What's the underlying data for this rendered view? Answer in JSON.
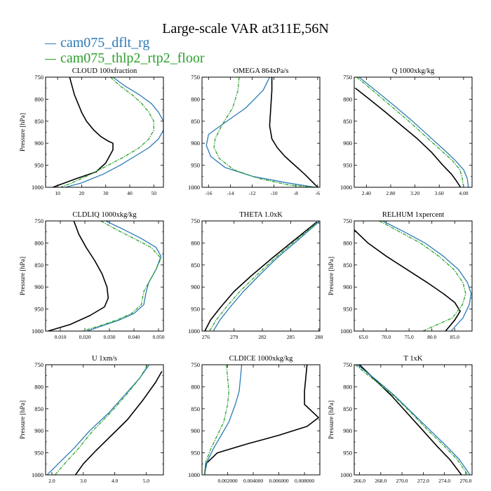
{
  "figure": {
    "title": "Large-scale VAR at311E,56N",
    "legend": [
      {
        "label": "cam075_dflt_rg",
        "color": "#2c7bb6"
      },
      {
        "label": "cam075_thlp2_rtp2_floor",
        "color": "#2ca02c"
      }
    ],
    "ref_color": "#000000"
  },
  "chart_data": [
    {
      "type": "line",
      "title": "CLOUD 100xfraction",
      "ylabel": "Pressure [hPa]",
      "xlim": [
        5,
        54
      ],
      "ylim": [
        1000,
        750
      ],
      "xticks": [
        10,
        20,
        30,
        40,
        50
      ],
      "xticklabels": [
        "10",
        "20",
        "30",
        "40",
        "50"
      ],
      "yticks": [
        750,
        800,
        850,
        900,
        950,
        1000
      ],
      "series": [
        {
          "style": "ref",
          "x": [
            15,
            16,
            17,
            18.5,
            20,
            22,
            25,
            28,
            31,
            33,
            33,
            30,
            26,
            18,
            8
          ],
          "y": [
            750,
            770,
            790,
            810,
            830,
            850,
            870,
            885,
            895,
            900,
            915,
            945,
            965,
            980,
            1000
          ]
        },
        {
          "series": 0,
          "x": [
            33,
            38,
            44,
            49,
            52,
            54,
            54,
            52,
            48,
            42,
            36,
            29,
            20,
            10
          ],
          "y": [
            750,
            770,
            790,
            810,
            830,
            850,
            870,
            890,
            910,
            930,
            950,
            970,
            990,
            1005
          ]
        },
        {
          "series": 1,
          "x": [
            32,
            36,
            41,
            45,
            48,
            50,
            50,
            48,
            44,
            38,
            31,
            24,
            16,
            9
          ],
          "y": [
            750,
            770,
            790,
            810,
            830,
            850,
            870,
            890,
            910,
            930,
            950,
            970,
            990,
            1005
          ]
        }
      ]
    },
    {
      "type": "line",
      "title": "OMEGA  864xPa/s",
      "ylabel": "",
      "xlim": [
        -16.6,
        -5.8
      ],
      "ylim": [
        1000,
        750
      ],
      "xticks": [
        -16,
        -14,
        -12,
        -10,
        -8,
        -6
      ],
      "xticklabels": [
        "-16",
        "-14",
        "-12",
        "-10",
        "-8",
        "-6"
      ],
      "yticks": [
        750,
        800,
        850,
        900,
        950,
        1000
      ],
      "series": [
        {
          "style": "ref",
          "x": [
            -10.2,
            -10.2,
            -10.3,
            -10.4,
            -10.2,
            -9.7,
            -9.0,
            -8.1,
            -7.2,
            -6.4,
            -6.0
          ],
          "y": [
            750,
            780,
            820,
            860,
            890,
            910,
            930,
            950,
            970,
            990,
            1000
          ]
        },
        {
          "series": 0,
          "x": [
            -10.4,
            -11.0,
            -12.6,
            -14.6,
            -16.0,
            -16.2,
            -15.8,
            -14.5,
            -12.0,
            -8.8,
            -6.2
          ],
          "y": [
            750,
            780,
            820,
            855,
            880,
            905,
            930,
            955,
            975,
            990,
            1000
          ]
        },
        {
          "series": 1,
          "x": [
            -13.2,
            -13.3,
            -13.8,
            -14.8,
            -15.4,
            -15.5,
            -15.0,
            -13.7,
            -11.4,
            -8.6,
            -6.2
          ],
          "y": [
            750,
            780,
            820,
            860,
            890,
            910,
            935,
            960,
            980,
            995,
            1000
          ]
        }
      ]
    },
    {
      "type": "line",
      "title": "Q  1000xkg/kg",
      "ylabel": "",
      "xlim": [
        2.2,
        4.14
      ],
      "ylim": [
        1000,
        750
      ],
      "xticks": [
        2.4,
        2.8,
        3.2,
        3.6,
        4.0
      ],
      "xticklabels": [
        "2.40",
        "2.80",
        "3.20",
        "3.60",
        "4.00"
      ],
      "yticks": [
        750,
        800,
        850,
        900,
        950,
        1000
      ],
      "series": [
        {
          "style": "ref",
          "x": [
            2.22,
            2.45,
            2.72,
            2.98,
            3.24,
            3.47,
            3.66,
            3.8,
            3.88,
            3.95
          ],
          "y": [
            775,
            800,
            830,
            860,
            890,
            920,
            950,
            970,
            985,
            1000
          ]
        },
        {
          "series": 0,
          "x": [
            2.28,
            2.55,
            2.86,
            3.16,
            3.44,
            3.68,
            3.87,
            4.0,
            4.06,
            4.08
          ],
          "y": [
            750,
            780,
            815,
            850,
            885,
            915,
            940,
            960,
            980,
            1000
          ]
        },
        {
          "series": 1,
          "x": [
            2.24,
            2.5,
            2.8,
            3.1,
            3.38,
            3.62,
            3.82,
            3.94,
            3.98,
            4.0
          ],
          "y": [
            750,
            780,
            815,
            850,
            885,
            915,
            940,
            960,
            980,
            1000
          ]
        }
      ]
    },
    {
      "type": "line",
      "title": "CLDLIQ  1000xkg/kg",
      "ylabel": "Pressure [hPa]",
      "xlim": [
        0.004,
        0.052
      ],
      "ylim": [
        1000,
        750
      ],
      "xticks": [
        0.01,
        0.02,
        0.03,
        0.04,
        0.05
      ],
      "xticklabels": [
        "0.010",
        "0.020",
        "0.030",
        "0.040",
        "0.050"
      ],
      "yticks": [
        750,
        800,
        850,
        900,
        950,
        1000
      ],
      "series": [
        {
          "style": "ref",
          "x": [
            0.0155,
            0.0175,
            0.0205,
            0.024,
            0.027,
            0.029,
            0.0295,
            0.028,
            0.022,
            0.014,
            0.005
          ],
          "y": [
            750,
            780,
            810,
            840,
            870,
            900,
            925,
            945,
            965,
            985,
            1000
          ]
        },
        {
          "series": 0,
          "x": [
            0.0285,
            0.036,
            0.043,
            0.049,
            0.051,
            0.049,
            0.046,
            0.045,
            0.044,
            0.04,
            0.034,
            0.026,
            0.021
          ],
          "y": [
            750,
            770,
            790,
            810,
            830,
            860,
            890,
            910,
            940,
            960,
            975,
            990,
            1000
          ]
        },
        {
          "series": 1,
          "x": [
            0.0265,
            0.033,
            0.04,
            0.047,
            0.051,
            0.049,
            0.046,
            0.044,
            0.043,
            0.039,
            0.033,
            0.025,
            0.019
          ],
          "y": [
            750,
            770,
            790,
            810,
            835,
            860,
            890,
            910,
            940,
            960,
            975,
            990,
            1000
          ]
        }
      ]
    },
    {
      "type": "line",
      "title": "THETA  1.0xK",
      "ylabel": "",
      "xlim": [
        275.6,
        288.1
      ],
      "ylim": [
        1000,
        750
      ],
      "xticks": [
        276,
        279,
        282,
        285,
        288
      ],
      "xticklabels": [
        "276",
        "279",
        "282",
        "285",
        "288"
      ],
      "yticks": [
        750,
        800,
        850,
        900,
        950,
        1000
      ],
      "series": [
        {
          "style": "ref",
          "x": [
            275.9,
            276.5,
            277.6,
            279.0,
            280.8,
            283.0,
            285.3,
            287.8
          ],
          "y": [
            1000,
            975,
            945,
            910,
            875,
            835,
            795,
            752
          ]
        },
        {
          "series": 0,
          "x": [
            276.8,
            277.5,
            278.6,
            280.0,
            281.6,
            283.5,
            285.7,
            288.0
          ],
          "y": [
            1000,
            975,
            945,
            910,
            875,
            835,
            795,
            752
          ]
        },
        {
          "series": 1,
          "x": [
            276.4,
            277.1,
            278.2,
            279.6,
            281.3,
            283.3,
            285.5,
            287.9
          ],
          "y": [
            1000,
            975,
            945,
            910,
            875,
            835,
            795,
            752
          ]
        }
      ]
    },
    {
      "type": "line",
      "title": "RELHUM  1xpercent",
      "ylabel": "Pressure [hPa]",
      "xlim": [
        63,
        88.8
      ],
      "ylim": [
        1000,
        750
      ],
      "xticks": [
        65,
        70,
        75,
        80,
        85
      ],
      "xticklabels": [
        "65.0",
        "70.0",
        "75.0",
        "80.0",
        "85.0"
      ],
      "yticks": [
        750,
        800,
        850,
        900,
        950,
        1000
      ],
      "series": [
        {
          "style": "ref",
          "x": [
            63,
            66,
            70,
            74.5,
            79,
            82.5,
            85,
            86.2,
            85,
            83
          ],
          "y": [
            770,
            800,
            830,
            860,
            890,
            915,
            935,
            955,
            975,
            1000
          ]
        },
        {
          "series": 0,
          "x": [
            69.2,
            74,
            78.5,
            82.5,
            85.8,
            87.8,
            88.6,
            88.2,
            86.8,
            84.2
          ],
          "y": [
            750,
            775,
            800,
            830,
            860,
            890,
            915,
            940,
            970,
            1000
          ]
        },
        {
          "series": 1,
          "x": [
            68.5,
            73,
            77.5,
            81.5,
            84.8,
            86.8,
            87.4,
            86.7,
            84.5,
            78
          ],
          "y": [
            750,
            775,
            800,
            830,
            860,
            890,
            915,
            940,
            970,
            1000
          ]
        }
      ]
    },
    {
      "type": "line",
      "title": "U  1xm/s",
      "ylabel": "Pressure [hPa]",
      "xlim": [
        1.8,
        5.55
      ],
      "ylim": [
        1000,
        750
      ],
      "xticks": [
        2.0,
        3.0,
        4.0,
        5.0
      ],
      "xticklabels": [
        "2.0",
        "3.0",
        "4.0",
        "5.0"
      ],
      "yticks": [
        750,
        800,
        850,
        900,
        950,
        1000
      ],
      "series": [
        {
          "style": "ref",
          "x": [
            2.75,
            3.0,
            3.4,
            3.9,
            4.4,
            4.9,
            5.3,
            5.5
          ],
          "y": [
            1000,
            975,
            945,
            910,
            875,
            830,
            790,
            765
          ]
        },
        {
          "series": 0,
          "x": [
            1.85,
            2.2,
            2.7,
            3.2,
            3.8,
            4.3,
            4.8,
            5.1
          ],
          "y": [
            1000,
            975,
            940,
            900,
            860,
            820,
            780,
            750
          ]
        },
        {
          "series": 1,
          "x": [
            2.1,
            2.4,
            2.85,
            3.3,
            3.85,
            4.35,
            4.8,
            5.05
          ],
          "y": [
            1000,
            975,
            940,
            900,
            860,
            820,
            780,
            750
          ]
        }
      ]
    },
    {
      "type": "line",
      "title": "CLDICE  1000xkg/kg",
      "ylabel": "",
      "xlim": [
        0,
        0.0092
      ],
      "ylim": [
        1000,
        750
      ],
      "xticks": [
        0.002,
        0.004,
        0.006,
        0.008
      ],
      "xticklabels": [
        "0.002000",
        "0.004000",
        "0.006000",
        "0.008000"
      ],
      "yticks": [
        750,
        800,
        850,
        900,
        950,
        1000
      ],
      "series": [
        {
          "style": "ref",
          "x": [
            0.0082,
            0.0081,
            0.008,
            0.008,
            0.0091,
            0.0082,
            0.006,
            0.0035,
            0.0012,
            0.0003,
            0.0002
          ],
          "y": [
            750,
            780,
            810,
            840,
            870,
            890,
            910,
            930,
            950,
            975,
            1000
          ]
        },
        {
          "series": 0,
          "x": [
            0.0031,
            0.003,
            0.0029,
            0.0026,
            0.0021,
            0.0015,
            0.0009,
            0.0004,
            0.0002
          ],
          "y": [
            750,
            780,
            810,
            840,
            880,
            910,
            940,
            970,
            1000
          ]
        },
        {
          "series": 1,
          "x": [
            0.0019,
            0.002,
            0.0021,
            0.002,
            0.0017,
            0.0012,
            0.0007,
            0.0003,
            0.0002
          ],
          "y": [
            750,
            780,
            810,
            840,
            880,
            910,
            940,
            970,
            1000
          ]
        }
      ]
    },
    {
      "type": "line",
      "title": "T  1xK",
      "ylabel": "Pressure [hPa]",
      "xlim": [
        265.5,
        276.6
      ],
      "ylim": [
        1000,
        750
      ],
      "xticks": [
        266,
        268,
        270,
        272,
        274,
        276
      ],
      "xticklabels": [
        "266.0",
        "268.0",
        "270.0",
        "272.0",
        "274.0",
        "276.0"
      ],
      "yticks": [
        750,
        800,
        850,
        900,
        950,
        1000
      ],
      "series": [
        {
          "style": "ref",
          "x": [
            266.0,
            267.5,
            269.0,
            270.5,
            272.0,
            273.3,
            274.5,
            275.6
          ],
          "y": [
            750,
            785,
            820,
            860,
            900,
            935,
            965,
            1000
          ]
        },
        {
          "series": 0,
          "x": [
            265.8,
            267.6,
            269.3,
            271.0,
            272.7,
            274.2,
            275.4,
            276.4
          ],
          "y": [
            750,
            785,
            820,
            860,
            900,
            935,
            965,
            1000
          ]
        },
        {
          "series": 1,
          "x": [
            265.6,
            267.4,
            269.2,
            270.9,
            272.5,
            274.0,
            275.2,
            276.2
          ],
          "y": [
            750,
            785,
            820,
            860,
            900,
            935,
            965,
            1000
          ]
        }
      ]
    }
  ]
}
